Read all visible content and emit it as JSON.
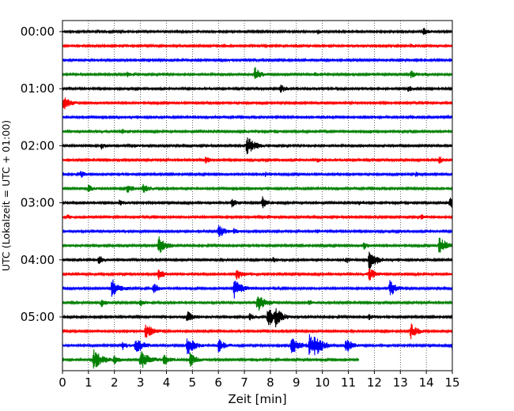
{
  "chart_data": {
    "type": "line",
    "title": "",
    "xlabel": "Zeit  [min]",
    "ylabel": "UTC (Lokalzeit = UTC + 01:00)",
    "xlim": [
      0,
      15
    ],
    "x_ticks": [
      "0",
      "1",
      "2",
      "3",
      "4",
      "5",
      "6",
      "7",
      "8",
      "9",
      "10",
      "11",
      "12",
      "13",
      "14",
      "15"
    ],
    "y_ticks": [
      "00:00",
      "01:00",
      "02:00",
      "03:00",
      "04:00",
      "05:00"
    ],
    "grid": "vertical dotted lines at each minute",
    "colors": [
      "#000000",
      "#ff0000",
      "#0000ff",
      "#008000"
    ],
    "row_interval_minutes": 15,
    "series": [
      {
        "start": "00:00",
        "color": "#000000",
        "events": [
          [
            9.8,
            0.3
          ],
          [
            13.9,
            0.5
          ]
        ]
      },
      {
        "start": "00:15",
        "color": "#ff0000",
        "events": [
          [
            2.2,
            0.15
          ],
          [
            13.4,
            0.25
          ]
        ]
      },
      {
        "start": "00:30",
        "color": "#0000ff",
        "events": []
      },
      {
        "start": "00:45",
        "color": "#008000",
        "events": [
          [
            2.5,
            0.3
          ],
          [
            7.4,
            1.0
          ],
          [
            9.7,
            0.3
          ],
          [
            13.4,
            0.5
          ]
        ]
      },
      {
        "start": "01:00",
        "color": "#000000",
        "events": [
          [
            8.4,
            0.6
          ],
          [
            13.3,
            0.5
          ]
        ]
      },
      {
        "start": "01:15",
        "color": "#ff0000",
        "events": [
          [
            0.05,
            1.0
          ]
        ]
      },
      {
        "start": "01:30",
        "color": "#0000ff",
        "events": [
          [
            13.4,
            0.25
          ]
        ]
      },
      {
        "start": "01:45",
        "color": "#008000",
        "events": [
          [
            2.3,
            0.3
          ],
          [
            7.0,
            0.3
          ],
          [
            11.8,
            0.2
          ]
        ]
      },
      {
        "start": "02:00",
        "color": "#000000",
        "events": [
          [
            1.5,
            0.4
          ],
          [
            7.1,
            1.4
          ],
          [
            2.8,
            0.3
          ]
        ]
      },
      {
        "start": "02:15",
        "color": "#ff0000",
        "events": [
          [
            5.5,
            0.5
          ],
          [
            9.8,
            0.3
          ],
          [
            14.5,
            0.5
          ]
        ]
      },
      {
        "start": "02:30",
        "color": "#0000ff",
        "events": [
          [
            0.7,
            0.5
          ],
          [
            7.8,
            0.3
          ],
          [
            13.6,
            0.3
          ]
        ]
      },
      {
        "start": "02:45",
        "color": "#008000",
        "events": [
          [
            1.0,
            0.5
          ],
          [
            2.5,
            0.7
          ],
          [
            3.1,
            0.7
          ]
        ]
      },
      {
        "start": "03:00",
        "color": "#000000",
        "events": [
          [
            2.2,
            0.4
          ],
          [
            6.5,
            0.6
          ],
          [
            7.7,
            0.8
          ],
          [
            11.4,
            0.3
          ],
          [
            14.9,
            0.8
          ]
        ]
      },
      {
        "start": "03:15",
        "color": "#ff0000",
        "events": [
          [
            0.2,
            0.3
          ],
          [
            7.9,
            0.3
          ],
          [
            13.8,
            0.3
          ]
        ]
      },
      {
        "start": "03:30",
        "color": "#0000ff",
        "events": [
          [
            6.0,
            1.0
          ],
          [
            6.6,
            0.4
          ],
          [
            9.8,
            0.3
          ]
        ]
      },
      {
        "start": "03:45",
        "color": "#008000",
        "events": [
          [
            3.7,
            1.3
          ],
          [
            11.6,
            0.5
          ],
          [
            14.5,
            1.4
          ]
        ]
      },
      {
        "start": "04:00",
        "color": "#000000",
        "events": [
          [
            1.4,
            0.7
          ],
          [
            8.1,
            0.4
          ],
          [
            10.9,
            0.5
          ],
          [
            11.8,
            1.4
          ]
        ]
      },
      {
        "start": "04:15",
        "color": "#ff0000",
        "events": [
          [
            3.7,
            0.8
          ],
          [
            6.7,
            0.8
          ],
          [
            11.8,
            0.9
          ]
        ]
      },
      {
        "start": "04:30",
        "color": "#0000ff",
        "events": [
          [
            1.9,
            1.4
          ],
          [
            3.5,
            0.8
          ],
          [
            6.6,
            1.4
          ],
          [
            12.6,
            1.2
          ]
        ]
      },
      {
        "start": "04:45",
        "color": "#008000",
        "events": [
          [
            1.5,
            0.6
          ],
          [
            3.0,
            0.6
          ],
          [
            7.5,
            1.4
          ],
          [
            9.5,
            0.4
          ]
        ]
      },
      {
        "start": "05:00",
        "color": "#000000",
        "events": [
          [
            4.8,
            0.9
          ],
          [
            7.2,
            0.5
          ],
          [
            7.9,
            1.5
          ],
          [
            8.2,
            1.0
          ],
          [
            11.8,
            0.4
          ]
        ]
      },
      {
        "start": "05:15",
        "color": "#ff0000",
        "events": [
          [
            3.2,
            1.2
          ],
          [
            13.4,
            1.1
          ]
        ]
      },
      {
        "start": "05:30",
        "color": "#0000ff",
        "events": [
          [
            2.3,
            0.6
          ],
          [
            2.8,
            1.3
          ],
          [
            4.8,
            1.4
          ],
          [
            6.0,
            1.0
          ],
          [
            8.8,
            1.4
          ],
          [
            9.5,
            1.5
          ],
          [
            9.7,
            1.2
          ],
          [
            10.9,
            1.2
          ],
          [
            15.0,
            0.8
          ]
        ]
      },
      {
        "start": "05:45",
        "color": "#008000",
        "events": [
          [
            1.2,
            1.5
          ],
          [
            2.0,
            0.6
          ],
          [
            3.0,
            1.5
          ],
          [
            3.9,
            0.8
          ],
          [
            4.9,
            1.0
          ]
        ],
        "end_x": 11.4
      }
    ]
  }
}
